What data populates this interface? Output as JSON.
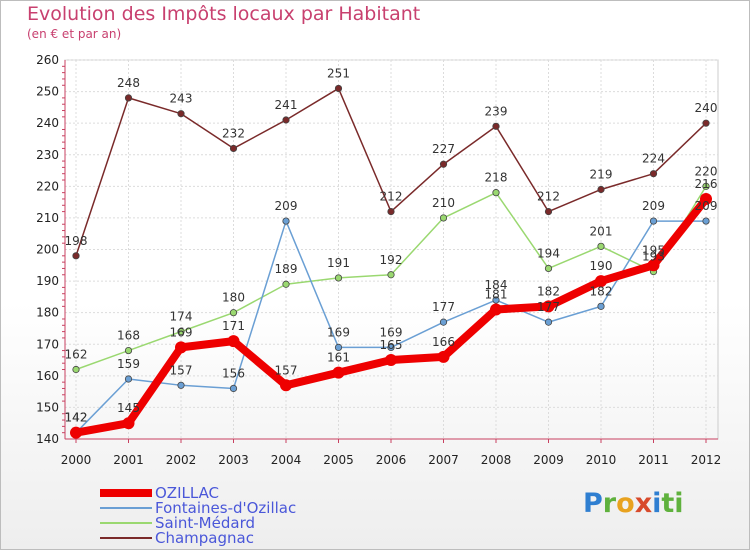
{
  "chart_data": {
    "type": "line",
    "title": "Evolution des Impôts locaux par Habitant",
    "subtitle": "(en € et par an)",
    "x": [
      "2000",
      "2001",
      "2002",
      "2003",
      "2004",
      "2005",
      "2006",
      "2007",
      "2008",
      "2009",
      "2010",
      "2011",
      "2012"
    ],
    "ylim": [
      140,
      260
    ],
    "yticks": [
      140,
      150,
      160,
      170,
      180,
      190,
      200,
      210,
      220,
      230,
      240,
      250,
      260
    ],
    "series": [
      {
        "name": "Champagnac",
        "color": "#7a2a2a",
        "values": [
          198,
          248,
          243,
          232,
          241,
          251,
          212,
          227,
          239,
          212,
          219,
          224,
          240
        ]
      },
      {
        "name": "Saint-Médard",
        "color": "#9ad870",
        "values": [
          162,
          168,
          174,
          180,
          189,
          191,
          192,
          210,
          218,
          194,
          201,
          193,
          220
        ]
      },
      {
        "name": "Fontaines-d'Ozillac",
        "color": "#6a9fd4",
        "values": [
          142,
          159,
          157,
          156,
          209,
          169,
          169,
          177,
          184,
          177,
          182,
          209,
          209
        ]
      },
      {
        "name": "OZILLAC",
        "color": "#ee0000",
        "values": [
          142,
          145,
          169,
          171,
          157,
          161,
          165,
          166,
          181,
          182,
          190,
          195,
          216
        ]
      }
    ],
    "legend": {
      "position": "bottom-left",
      "entries": [
        "OZILLAC",
        "Fontaines-d'Ozillac",
        "Saint-Médard",
        "Champagnac"
      ]
    }
  },
  "branding": {
    "logo": "Proxiti",
    "letters": [
      "P",
      "r",
      "o",
      "x",
      "i",
      "ti"
    ]
  }
}
